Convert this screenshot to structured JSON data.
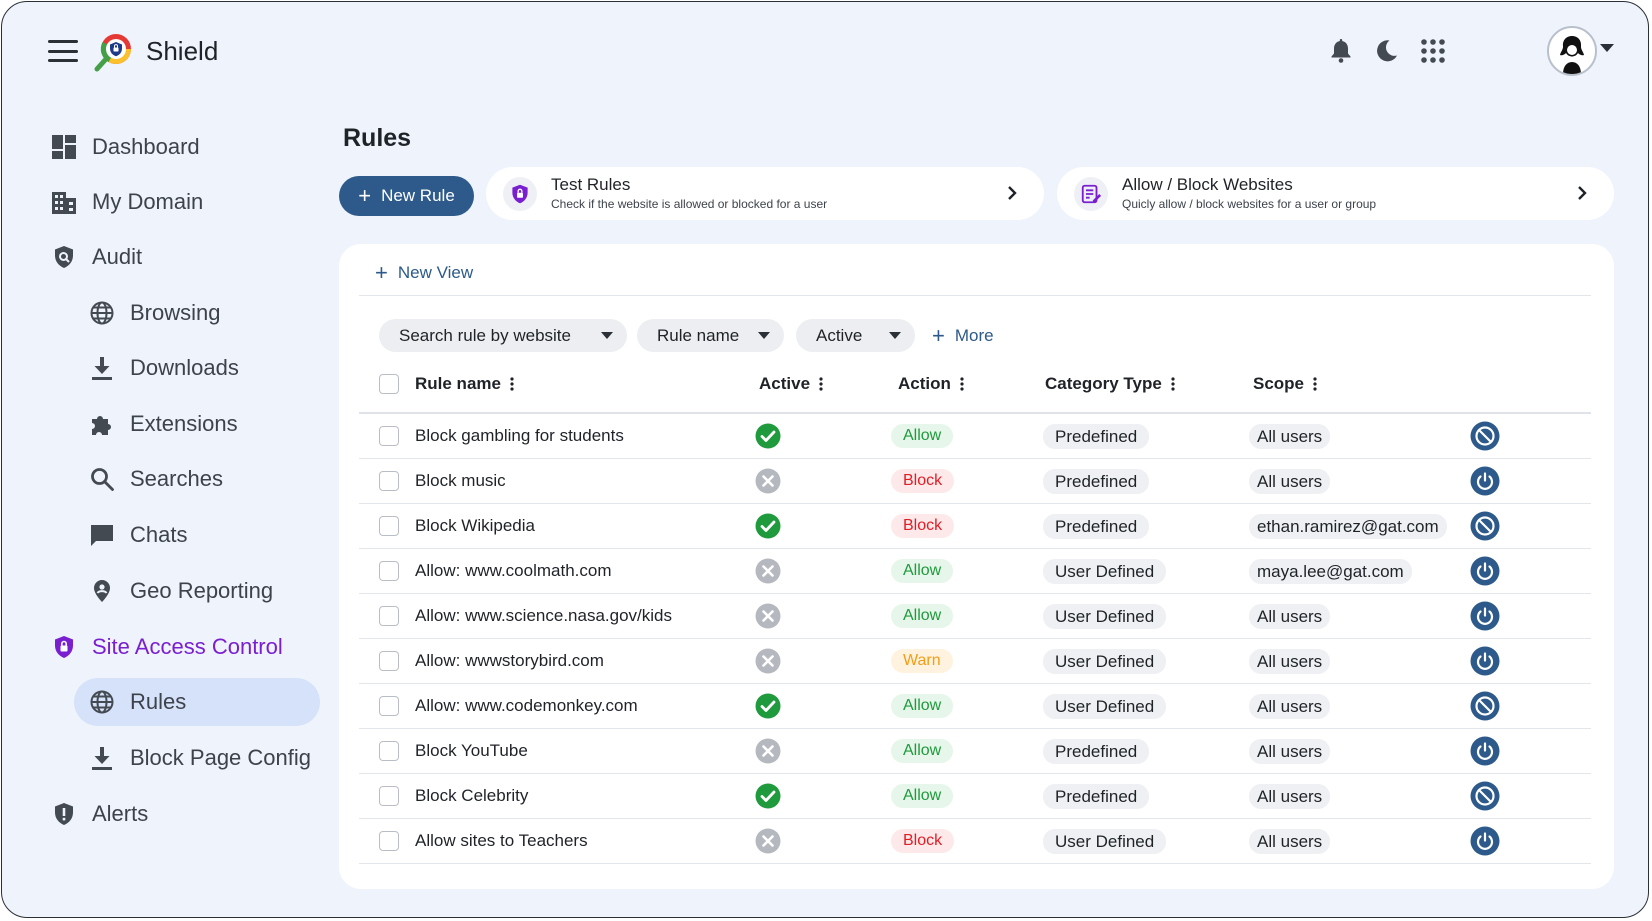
{
  "app": {
    "title": "Shield"
  },
  "sidebar": {
    "items": [
      {
        "label": "Dashboard",
        "icon": "dashboard-icon"
      },
      {
        "label": "My Domain",
        "icon": "domain-icon"
      },
      {
        "label": "Audit",
        "icon": "audit-icon"
      },
      {
        "label": "Browsing",
        "icon": "globe-icon"
      },
      {
        "label": "Downloads",
        "icon": "download-icon"
      },
      {
        "label": "Extensions",
        "icon": "puzzle-icon"
      },
      {
        "label": "Searches",
        "icon": "search-icon"
      },
      {
        "label": "Chats",
        "icon": "chat-icon"
      },
      {
        "label": "Geo Reporting",
        "icon": "location-pin-icon"
      },
      {
        "label": "Site Access Control",
        "icon": "shield-lock-icon"
      },
      {
        "label": "Rules",
        "icon": "globe-icon"
      },
      {
        "label": "Block Page Config",
        "icon": "download-icon"
      },
      {
        "label": "Alerts",
        "icon": "alert-shield-icon"
      }
    ],
    "active_item": "Rules",
    "active_section": "Site Access Control"
  },
  "main": {
    "title": "Rules",
    "new_rule_label": "New Rule",
    "test_rules": {
      "title": "Test Rules",
      "subtitle": "Check if the website is allowed or blocked for a user"
    },
    "allow_block": {
      "title": "Allow / Block Websites",
      "subtitle": "Quicly allow / block websites for a user or group"
    },
    "new_view_label": "New View",
    "filters": {
      "website": "Search rule by website",
      "rule_name": "Rule name",
      "active": "Active",
      "more": "More"
    },
    "columns": {
      "rule_name": "Rule name",
      "active": "Active",
      "action": "Action",
      "category_type": "Category Type",
      "scope": "Scope"
    },
    "rows": [
      {
        "name": "Block gambling for students",
        "active": true,
        "action": "Allow",
        "category": "Predefined",
        "scope": "All users",
        "control": "disable"
      },
      {
        "name": "Block music",
        "active": false,
        "action": "Block",
        "category": "Predefined",
        "scope": "All users",
        "control": "enable"
      },
      {
        "name": "Block Wikipedia",
        "active": true,
        "action": "Block",
        "category": "Predefined",
        "scope": "ethan.ramirez@gat.com",
        "control": "disable"
      },
      {
        "name": "Allow: www.coolmath.com",
        "active": false,
        "action": "Allow",
        "category": "User Defined",
        "scope": "maya.lee@gat.com",
        "control": "enable"
      },
      {
        "name": "Allow: www.science.nasa.gov/kids",
        "active": false,
        "action": "Allow",
        "category": "User Defined",
        "scope": "All users",
        "control": "enable"
      },
      {
        "name": "Allow: wwwstorybird.com",
        "active": false,
        "action": "Warn",
        "category": "User Defined",
        "scope": "All users",
        "control": "enable"
      },
      {
        "name": "Allow: www.codemonkey.com",
        "active": true,
        "action": "Allow",
        "category": "User Defined",
        "scope": "All users",
        "control": "disable"
      },
      {
        "name": "Block YouTube",
        "active": false,
        "action": "Allow",
        "category": "Predefined",
        "scope": "All users",
        "control": "enable"
      },
      {
        "name": "Block Celebrity",
        "active": true,
        "action": "Allow",
        "category": "Predefined",
        "scope": "All users",
        "control": "disable"
      },
      {
        "name": "Allow sites to Teachers",
        "active": false,
        "action": "Block",
        "category": "User Defined",
        "scope": "All users",
        "control": "enable"
      }
    ]
  },
  "colors": {
    "primary": "#2d5a8a",
    "accent_purple": "#7a1fd0",
    "active_green": "#1f9a3c",
    "inactive_gray": "#b5b9bf",
    "block_red": "#e01e26",
    "warn_orange": "#f29d17",
    "background": "#eef3fc"
  }
}
